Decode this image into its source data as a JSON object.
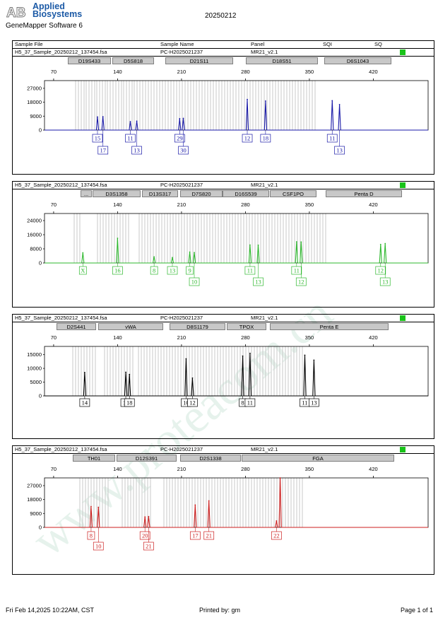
{
  "header": {
    "brand_mark": "AB",
    "brand_line1": "Applied",
    "brand_line2": "Biosystems",
    "software": "GeneMapper Software 6",
    "run_date": "20250212"
  },
  "columns": {
    "sample_file": "Sample File",
    "sample_name": "Sample Name",
    "panel": "Panel",
    "sqi": "SQI",
    "sq": "SQ"
  },
  "colors": {
    "blue": "#1a1aa8",
    "green": "#2eb82e",
    "black": "#000000",
    "red": "#cc1f1f",
    "quality": "#19c319",
    "bin": "#c8c8c8",
    "watermark": "#e6f2ec"
  },
  "watermark_text": "www.proteacom.cn",
  "footer": {
    "date": "Fri Feb 14,2025 10:22AM, CST",
    "printed_by": "Printed by: gm",
    "page": "Page 1 of 1"
  },
  "chart_data": [
    {
      "type": "line",
      "dye": "blue",
      "sample_file": "H5_37_Sample_20250212_137454.fsa",
      "sample_name": "PC-H2025021237",
      "panel": "MR21_v2.1",
      "x_ticks": [
        70,
        140,
        210,
        280,
        350,
        420
      ],
      "y_ticks": [
        0,
        9000,
        18000,
        27000
      ],
      "xlim": [
        60,
        480
      ],
      "ylim": [
        0,
        32000
      ],
      "markers": [
        "D19S433",
        "D5S818",
        "D21S11",
        "D18S51",
        "D6S1043"
      ],
      "peaks": [
        {
          "x": 118,
          "y": 8500
        },
        {
          "x": 124,
          "y": 8700
        },
        {
          "x": 154,
          "y": 5500
        },
        {
          "x": 161,
          "y": 5800
        },
        {
          "x": 208,
          "y": 7400
        },
        {
          "x": 212,
          "y": 7600
        },
        {
          "x": 282,
          "y": 19800
        },
        {
          "x": 302,
          "y": 18800
        },
        {
          "x": 375,
          "y": 19000
        },
        {
          "x": 383,
          "y": 16500
        }
      ],
      "alleles": [
        "15",
        "17",
        "11",
        "13",
        "29",
        "30",
        "12",
        "18",
        "11",
        "13"
      ]
    },
    {
      "type": "line",
      "dye": "green",
      "sample_file": "H5_37_Sample_20250212_137454.fsa",
      "sample_name": "PC-H2025021237",
      "panel": "MR21_v2.1",
      "x_ticks": [
        70,
        140,
        210,
        280,
        350,
        420
      ],
      "y_ticks": [
        0,
        8000,
        16000,
        24000
      ],
      "xlim": [
        60,
        480
      ],
      "ylim": [
        0,
        28000
      ],
      "markers": [
        "...",
        "D3S1358",
        "D13S317",
        "D7S820",
        "D16S539",
        "CSF1PO",
        "Penta D"
      ],
      "peaks": [
        {
          "x": 102,
          "y": 5800
        },
        {
          "x": 140,
          "y": 14000
        },
        {
          "x": 180,
          "y": 3500
        },
        {
          "x": 200,
          "y": 3100
        },
        {
          "x": 219,
          "y": 6200
        },
        {
          "x": 224,
          "y": 5900
        },
        {
          "x": 285,
          "y": 10200
        },
        {
          "x": 294,
          "y": 10100
        },
        {
          "x": 336,
          "y": 12000
        },
        {
          "x": 341,
          "y": 11900
        },
        {
          "x": 428,
          "y": 10500
        },
        {
          "x": 433,
          "y": 11000
        }
      ],
      "alleles": [
        "X",
        "16",
        "8",
        "13",
        "9",
        "10",
        "11",
        "13",
        "11",
        "12",
        "12",
        "13"
      ]
    },
    {
      "type": "line",
      "dye": "black",
      "sample_file": "H5_37_Sample_20250212_137454.fsa",
      "sample_name": "PC-H2025021237",
      "panel": "MR21_v2.1",
      "x_ticks": [
        70,
        140,
        210,
        280,
        350,
        420
      ],
      "y_ticks": [
        0,
        5000,
        10000,
        15000
      ],
      "xlim": [
        60,
        480
      ],
      "ylim": [
        0,
        18000
      ],
      "markers": [
        "D2S441",
        "vWA",
        "D8S1179",
        "TPOX",
        "Penta E"
      ],
      "peaks": [
        {
          "x": 104,
          "y": 8500
        },
        {
          "x": 149,
          "y": 8600
        },
        {
          "x": 153,
          "y": 7800
        },
        {
          "x": 215,
          "y": 13500
        },
        {
          "x": 222,
          "y": 6500
        },
        {
          "x": 277,
          "y": 14500
        },
        {
          "x": 285,
          "y": 15500
        },
        {
          "x": 345,
          "y": 14800
        },
        {
          "x": 355,
          "y": 13000
        }
      ],
      "alleles": [
        "14",
        "17",
        "18",
        "10",
        "12",
        "8",
        "11",
        "11",
        "13"
      ]
    },
    {
      "type": "line",
      "dye": "red",
      "sample_file": "H5_37_Sample_20250212_137454.fsa",
      "sample_name": "PC-H2025021237",
      "panel": "MR21_v2.1",
      "x_ticks": [
        70,
        140,
        210,
        280,
        350,
        420
      ],
      "y_ticks": [
        0,
        9000,
        18000,
        27000
      ],
      "xlim": [
        60,
        480
      ],
      "ylim": [
        0,
        32000
      ],
      "markers": [
        "TH01",
        "D12S391",
        "D2S1338",
        "FGA"
      ],
      "peaks": [
        {
          "x": 111,
          "y": 13500
        },
        {
          "x": 119,
          "y": 13000
        },
        {
          "x": 170,
          "y": 6800
        },
        {
          "x": 174,
          "y": 7000
        },
        {
          "x": 225,
          "y": 14500
        },
        {
          "x": 240,
          "y": 17200
        },
        {
          "x": 314,
          "y": 4200
        },
        {
          "x": 318,
          "y": 33000
        }
      ],
      "alleles": [
        "8",
        "10",
        "20",
        "21",
        "17",
        "21",
        "22"
      ]
    }
  ]
}
